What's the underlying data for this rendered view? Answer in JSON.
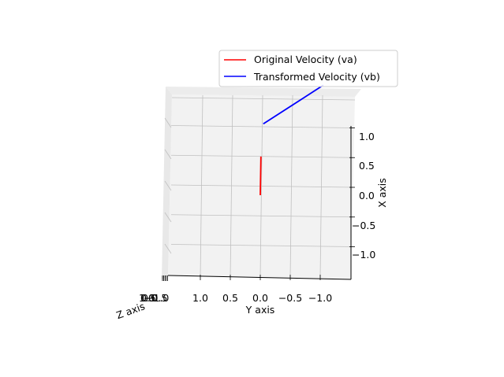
{
  "chart_data": {
    "type": "line",
    "projection": "3d",
    "xlabel": "X axis",
    "ylabel": "Y axis",
    "zlabel": "Z axis",
    "x_ticks": [
      "1.0",
      "0.5",
      "0.0",
      "−0.5",
      "−1.0"
    ],
    "y_ticks": [
      "1.0",
      "0.5",
      "0.0",
      "−0.5",
      "−1.0"
    ],
    "z_ticks": [
      "1.0",
      "0.5",
      "0.0",
      "−0.5",
      "−1.0"
    ],
    "grid": true,
    "legend_position": "top-right",
    "series": [
      {
        "name": "Original Velocity (va)",
        "color": "#ff0000",
        "x": [
          0.0,
          0.65
        ],
        "y": [
          0.0,
          -0.01
        ],
        "z": [
          0.0,
          0.0
        ]
      },
      {
        "name": "Transformed Velocity (vb)",
        "color": "#0000ff",
        "x": [
          1.2,
          1.85
        ],
        "y": [
          -0.05,
          -1.05
        ],
        "z": [
          0.0,
          0.0
        ]
      }
    ]
  }
}
